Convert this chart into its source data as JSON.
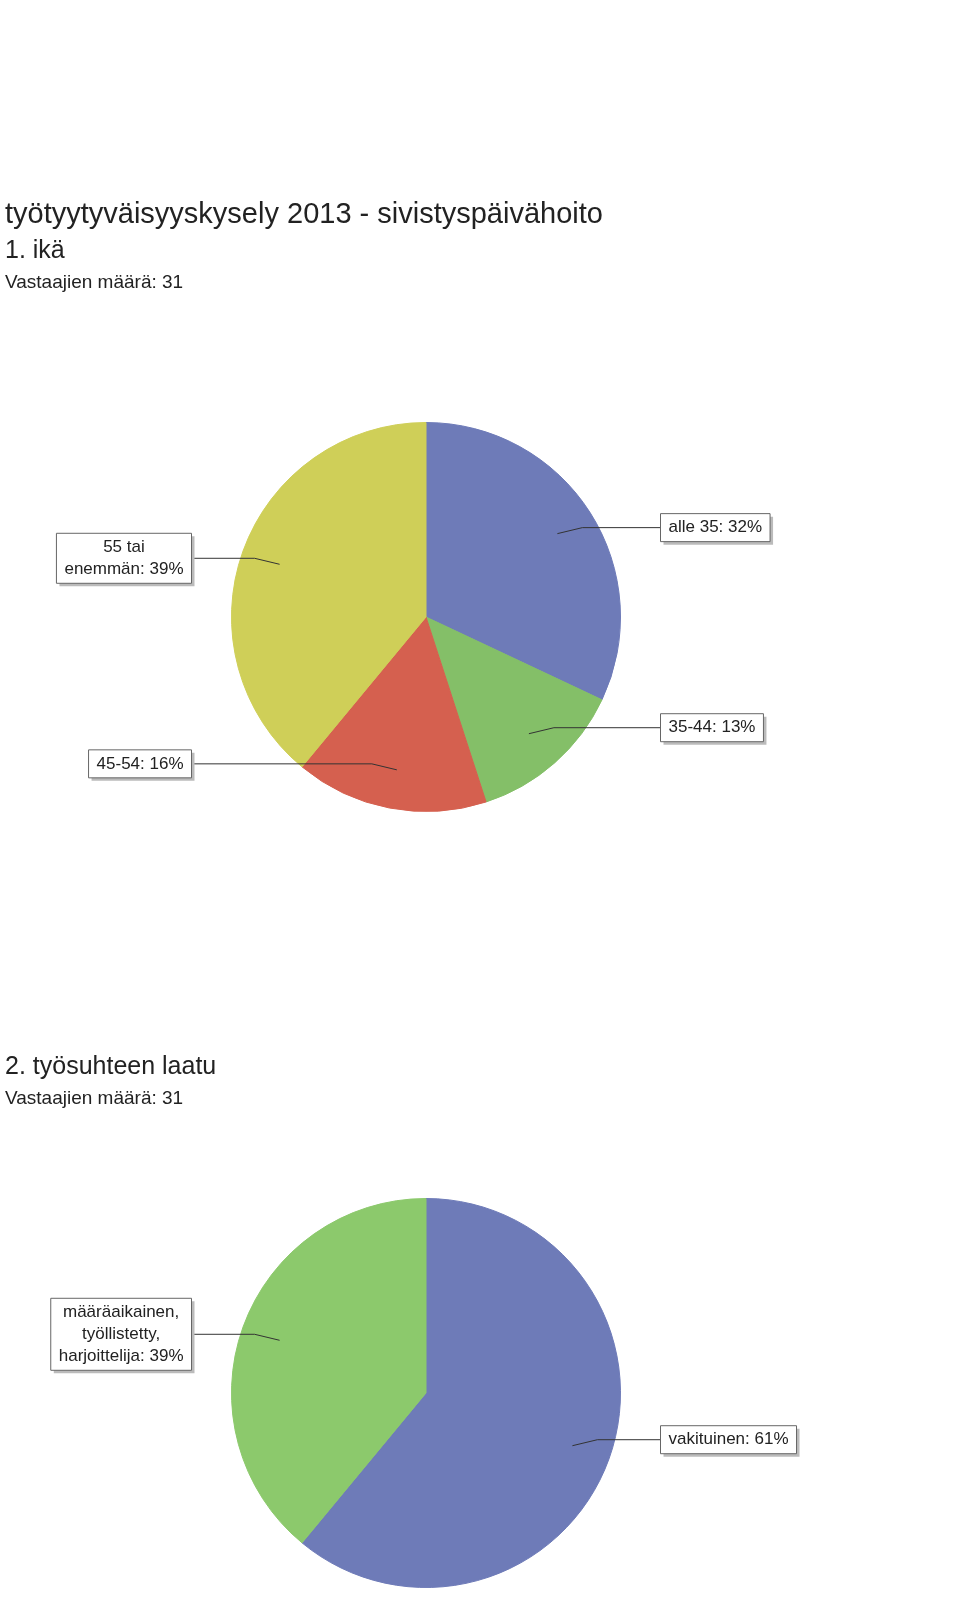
{
  "chart_data": [
    {
      "type": "pie",
      "title": "työtyytyväisyyskysely 2013 - sivistyspäivähoito",
      "subtitle": "1. ikä",
      "annotations": [
        "Vastaajien määrä: 31"
      ],
      "categories": [
        "alle 35",
        "35-44",
        "45-54",
        "55 tai enemmän"
      ],
      "values": [
        32,
        13,
        16,
        39
      ],
      "value_labels": [
        "32%",
        "13%",
        "16%",
        "39%"
      ],
      "colors": [
        "#6e7bb8",
        "#84bf68",
        "#d5604f",
        "#cfcf58"
      ],
      "legend": false
    },
    {
      "type": "pie",
      "title": "2. työsuhteen laatu",
      "annotations": [
        "Vastaajien määrä: 31"
      ],
      "categories": [
        "vakituinen",
        "määräaikainen, työllistetty, harjoittelija"
      ],
      "values": [
        61,
        39
      ],
      "value_labels": [
        "61%",
        "39%"
      ],
      "colors": [
        "#6e7bb8",
        "#8cc96c"
      ],
      "legend": false
    }
  ]
}
